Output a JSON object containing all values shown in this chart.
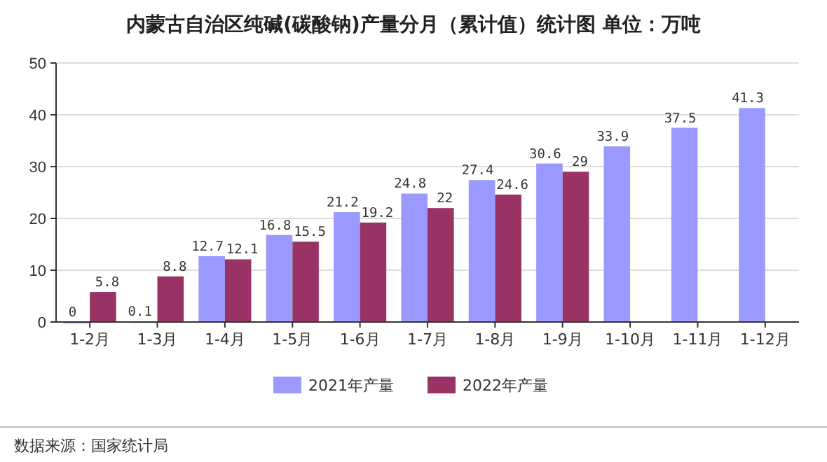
{
  "chart_data": {
    "type": "bar",
    "title": "内蒙古自治区纯碱(碳酸钠)产量分月（累计值）统计图  单位：万吨",
    "categories": [
      "1-2月",
      "1-3月",
      "1-4月",
      "1-5月",
      "1-6月",
      "1-7月",
      "1-8月",
      "1-9月",
      "1-10月",
      "1-11月",
      "1-12月"
    ],
    "series": [
      {
        "name": "2021年产量",
        "color": "#9999ff",
        "values": [
          0,
          0.1,
          12.7,
          16.8,
          21.2,
          24.8,
          27.4,
          30.6,
          33.9,
          37.5,
          41.3
        ]
      },
      {
        "name": "2022年产量",
        "color": "#993366",
        "values": [
          5.8,
          8.8,
          12.1,
          15.5,
          19.2,
          22,
          24.6,
          29,
          null,
          null,
          null
        ]
      }
    ],
    "ylim": [
      0,
      50
    ],
    "yticks": [
      0,
      10,
      20,
      30,
      40,
      50
    ],
    "grid": "y",
    "legend": "bottom",
    "data_labels": true,
    "annotations": [
      "数据来源：国家统计局"
    ]
  }
}
